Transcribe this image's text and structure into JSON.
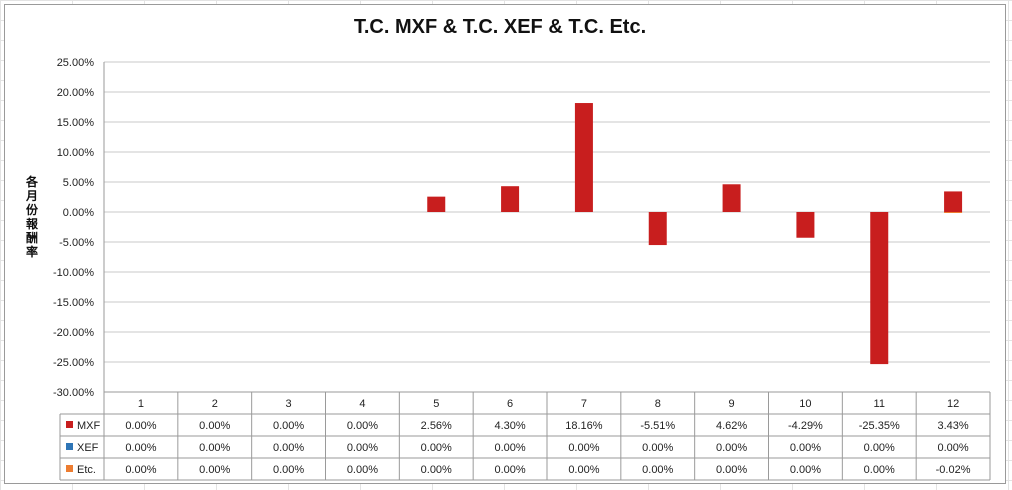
{
  "chart_data": {
    "type": "bar",
    "title": "T.C. MXF & T.C. XEF & T.C. Etc.",
    "ylabel": "各月份報酬率",
    "xlabel": "",
    "ylim": [
      -30,
      25
    ],
    "yticks": [
      "25.00%",
      "20.00%",
      "15.00%",
      "10.00%",
      "5.00%",
      "0.00%",
      "-5.00%",
      "-10.00%",
      "-15.00%",
      "-20.00%",
      "-25.00%",
      "-30.00%"
    ],
    "categories": [
      "1",
      "2",
      "3",
      "4",
      "5",
      "6",
      "7",
      "8",
      "9",
      "10",
      "11",
      "12"
    ],
    "grid": true,
    "legend": "data-table",
    "series": [
      {
        "name": "MXF",
        "color": "#c81e1e",
        "values": [
          0,
          0,
          0,
          0,
          2.56,
          4.3,
          18.16,
          -5.51,
          4.62,
          -4.29,
          -25.35,
          3.43
        ],
        "labels": [
          "0.00%",
          "0.00%",
          "0.00%",
          "0.00%",
          "2.56%",
          "4.30%",
          "18.16%",
          "-5.51%",
          "4.62%",
          "-4.29%",
          "-25.35%",
          "3.43%"
        ]
      },
      {
        "name": "XEF",
        "color": "#2e75b6",
        "values": [
          0,
          0,
          0,
          0,
          0,
          0,
          0,
          0,
          0,
          0,
          0,
          0
        ],
        "labels": [
          "0.00%",
          "0.00%",
          "0.00%",
          "0.00%",
          "0.00%",
          "0.00%",
          "0.00%",
          "0.00%",
          "0.00%",
          "0.00%",
          "0.00%",
          "0.00%"
        ]
      },
      {
        "name": "Etc.",
        "color": "#ed7d31",
        "values": [
          0,
          0,
          0,
          0,
          0,
          0,
          0,
          0,
          0,
          0,
          0,
          -0.02
        ],
        "labels": [
          "0.00%",
          "0.00%",
          "0.00%",
          "0.00%",
          "0.00%",
          "0.00%",
          "0.00%",
          "0.00%",
          "0.00%",
          "0.00%",
          "0.00%",
          "-0.02%"
        ]
      }
    ]
  }
}
